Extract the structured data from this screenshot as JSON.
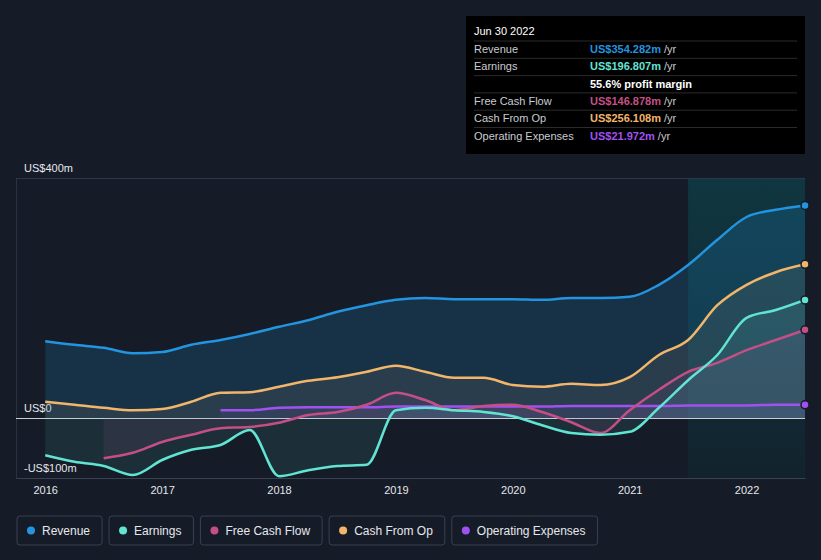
{
  "chart_data": {
    "type": "area",
    "x": [
      2016,
      2016.25,
      2016.5,
      2016.75,
      2017,
      2017.25,
      2017.5,
      2017.75,
      2018,
      2018.25,
      2018.5,
      2018.75,
      2019,
      2019.25,
      2019.5,
      2019.75,
      2020,
      2020.25,
      2020.5,
      2020.75,
      2021,
      2021.25,
      2021.5,
      2021.75,
      2022,
      2022.25,
      2022.5
    ],
    "xlim": [
      2015.75,
      2022.5
    ],
    "xticks": [
      2016,
      2017,
      2018,
      2019,
      2020,
      2021,
      2022
    ],
    "ylim": [
      -100,
      400
    ],
    "yticks": [
      {
        "value": -100,
        "label": "-US$100m"
      },
      {
        "value": 0,
        "label": "US$0"
      },
      {
        "value": 400,
        "label": "US$400m"
      }
    ],
    "grid": true,
    "legend": "bottom",
    "series": [
      {
        "name": "Revenue",
        "color": "#2394df",
        "values": [
          128,
          122,
          117,
          108,
          110,
          122,
          130,
          140,
          152,
          163,
          177,
          188,
          197,
          200,
          198,
          198,
          198,
          197,
          200,
          200,
          202,
          222,
          255,
          297,
          335,
          347,
          354.282
        ]
      },
      {
        "name": "Earnings",
        "color": "#62e4d3",
        "values": [
          -62,
          -73,
          -80,
          -95,
          -70,
          -53,
          -45,
          -20,
          -97,
          -87,
          -80,
          -78,
          13,
          17,
          13,
          10,
          3,
          -12,
          -25,
          -28,
          -23,
          17,
          63,
          105,
          167,
          180,
          196.807
        ]
      },
      {
        "name": "Free Cash Flow",
        "color": "#c44f86",
        "values": [
          null,
          null,
          -67,
          -58,
          -40,
          -28,
          -17,
          -15,
          -8,
          5,
          10,
          22,
          42,
          30,
          13,
          20,
          22,
          10,
          -7,
          -25,
          13,
          47,
          77,
          92,
          113,
          130,
          146.878
        ]
      },
      {
        "name": "Cash From Op",
        "color": "#f1b56b",
        "values": [
          27,
          22,
          17,
          13,
          15,
          27,
          42,
          43,
          52,
          62,
          68,
          77,
          87,
          77,
          67,
          67,
          55,
          52,
          57,
          55,
          68,
          105,
          130,
          188,
          222,
          243,
          256.108
        ]
      },
      {
        "name": "Operating Expenses",
        "color": "#a052f0",
        "values": [
          null,
          null,
          null,
          null,
          null,
          null,
          13,
          13,
          17,
          18,
          18,
          18,
          19,
          19,
          19,
          19,
          19,
          19,
          20,
          20,
          20,
          20,
          21,
          21,
          21,
          22,
          21.972
        ]
      }
    ],
    "annotations": {
      "date": "Jun 30 2022",
      "rows": [
        {
          "label": "Revenue",
          "value": "US$354.282m",
          "unit": "/yr"
        },
        {
          "label": "Earnings",
          "value": "US$196.807m",
          "unit": "/yr"
        },
        {
          "label": "Free Cash Flow",
          "value": "US$146.878m",
          "unit": "/yr"
        },
        {
          "label": "Cash From Op",
          "value": "US$256.108m",
          "unit": "/yr"
        },
        {
          "label": "Operating Expenses",
          "value": "US$21.972m",
          "unit": "/yr"
        }
      ],
      "note": "55.6% profit margin"
    }
  }
}
